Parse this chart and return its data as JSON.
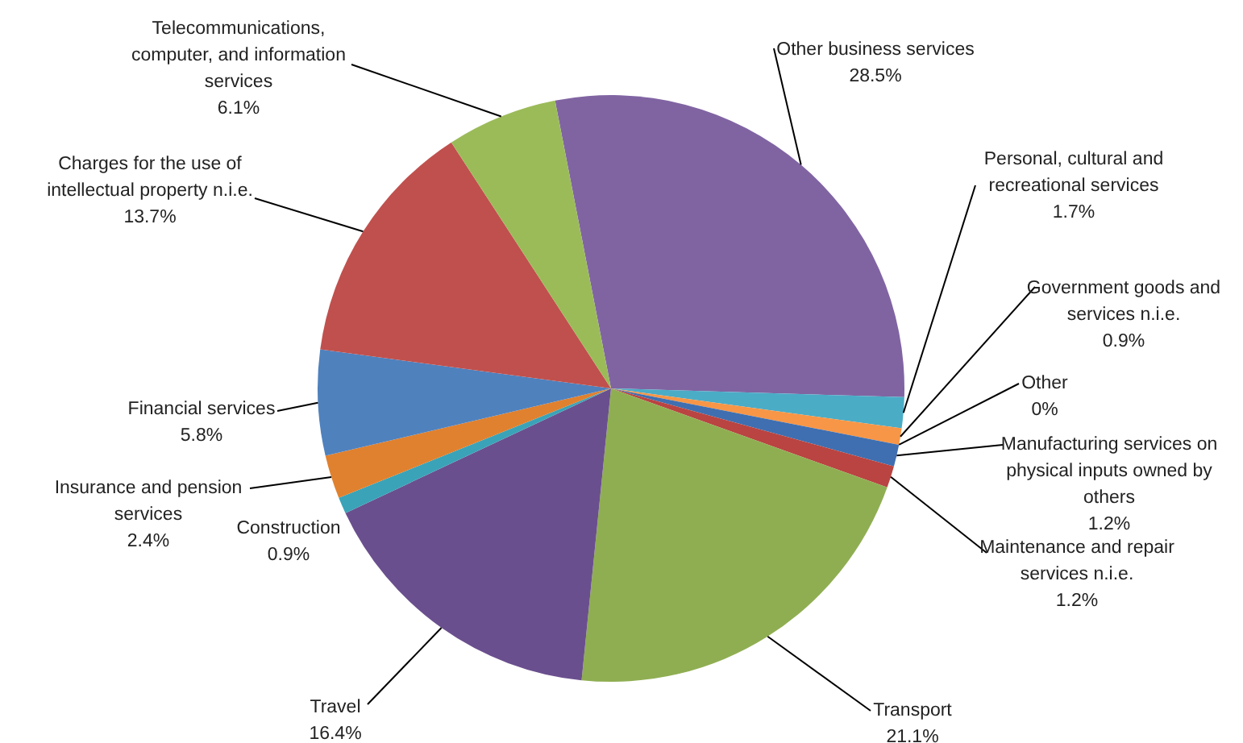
{
  "chart_data": {
    "type": "pie",
    "categories": [
      "Other business services",
      "Personal, cultural and recreational services",
      "Government goods and services n.i.e.",
      "Other",
      "Manufacturing services on physical inputs owned by others",
      "Maintenance and repair services n.i.e.",
      "Transport",
      "Travel",
      "Construction",
      "Insurance and pension services",
      "Financial services",
      "Charges for the use of intellectual property n.i.e.",
      "Telecommunications, computer, and information services"
    ],
    "values": [
      28.5,
      1.7,
      0.9,
      0,
      1.2,
      1.2,
      21.1,
      16.4,
      0.9,
      2.4,
      5.8,
      13.7,
      6.1
    ],
    "value_labels": [
      "28.5%",
      "1.7%",
      "0.9%",
      "0%",
      "1.2%",
      "1.2%",
      "21.1%",
      "16.4%",
      "0.9%",
      "2.4%",
      "5.8%",
      "13.7%",
      "6.1%"
    ],
    "colors": [
      "#8064a2",
      "#4bacc6",
      "#f79646",
      "#2c4d75",
      "#3f6fb0",
      "#b94441",
      "#8fae52",
      "#6a4f8e",
      "#3aa3b8",
      "#e0812f",
      "#4f81bd",
      "#c0504d",
      "#9bbb59"
    ],
    "legend": false
  }
}
